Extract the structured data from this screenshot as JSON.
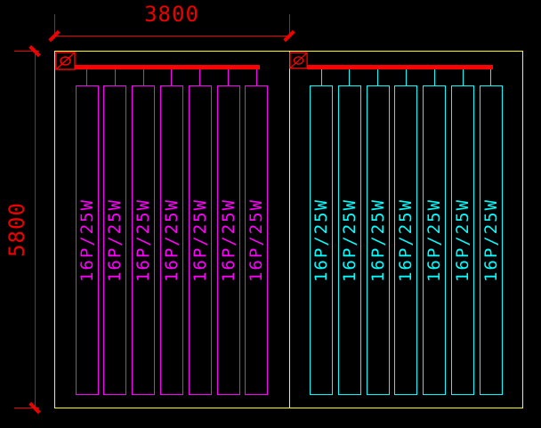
{
  "dimensions": {
    "width": {
      "label": "3800"
    },
    "height": {
      "label": "5800"
    }
  },
  "rooms": {
    "left": {
      "panel_label": "16P/25W",
      "panel_count": 7,
      "color": "#FF00FF"
    },
    "right": {
      "panel_label": "16P/25W",
      "panel_count": 7,
      "color": "#00FFFF"
    }
  },
  "colors": {
    "background": "#000000",
    "room_outline": "#FFFF00",
    "dimension": "#EE0000",
    "busbar": "#FF0000",
    "symbol": "#FF0000"
  },
  "symbols": {
    "supply_box": "circle-slash"
  }
}
